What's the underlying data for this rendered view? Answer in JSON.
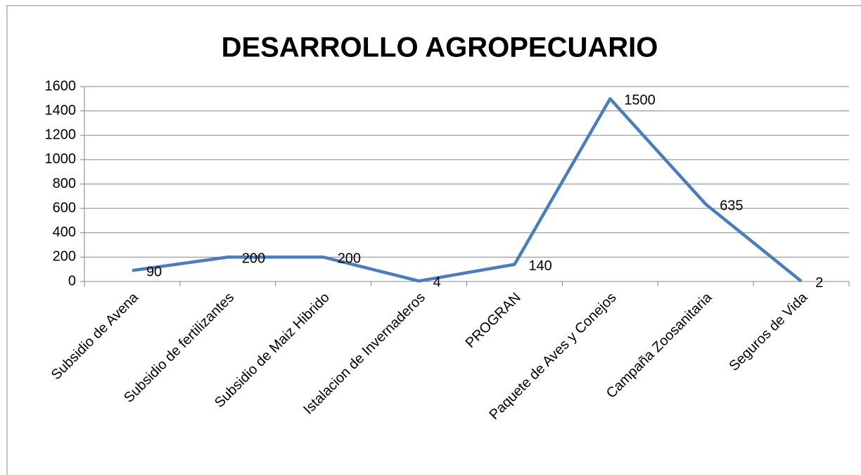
{
  "chart_data": {
    "type": "line",
    "title": "DESARROLLO AGROPECUARIO",
    "categories": [
      "Subsidio de Avena",
      "Subsidio de fertilizantes",
      "Subsidio de Maiz Hibrido",
      "Istalacion de Invernaderos",
      "PROGRAN",
      "Paquete de Aves y Conejos",
      "Campaña Zoosanitaria",
      "Seguros de Vida"
    ],
    "series": [
      {
        "name": "DESARROLLO AGROPECUARIO",
        "color": "#4a7ebb",
        "values": [
          90,
          200,
          200,
          4,
          140,
          1500,
          635,
          2
        ]
      }
    ],
    "ylim": [
      0,
      1600
    ],
    "yticks": [
      0,
      200,
      400,
      600,
      800,
      1000,
      1200,
      1400,
      1600
    ],
    "grid": true
  }
}
